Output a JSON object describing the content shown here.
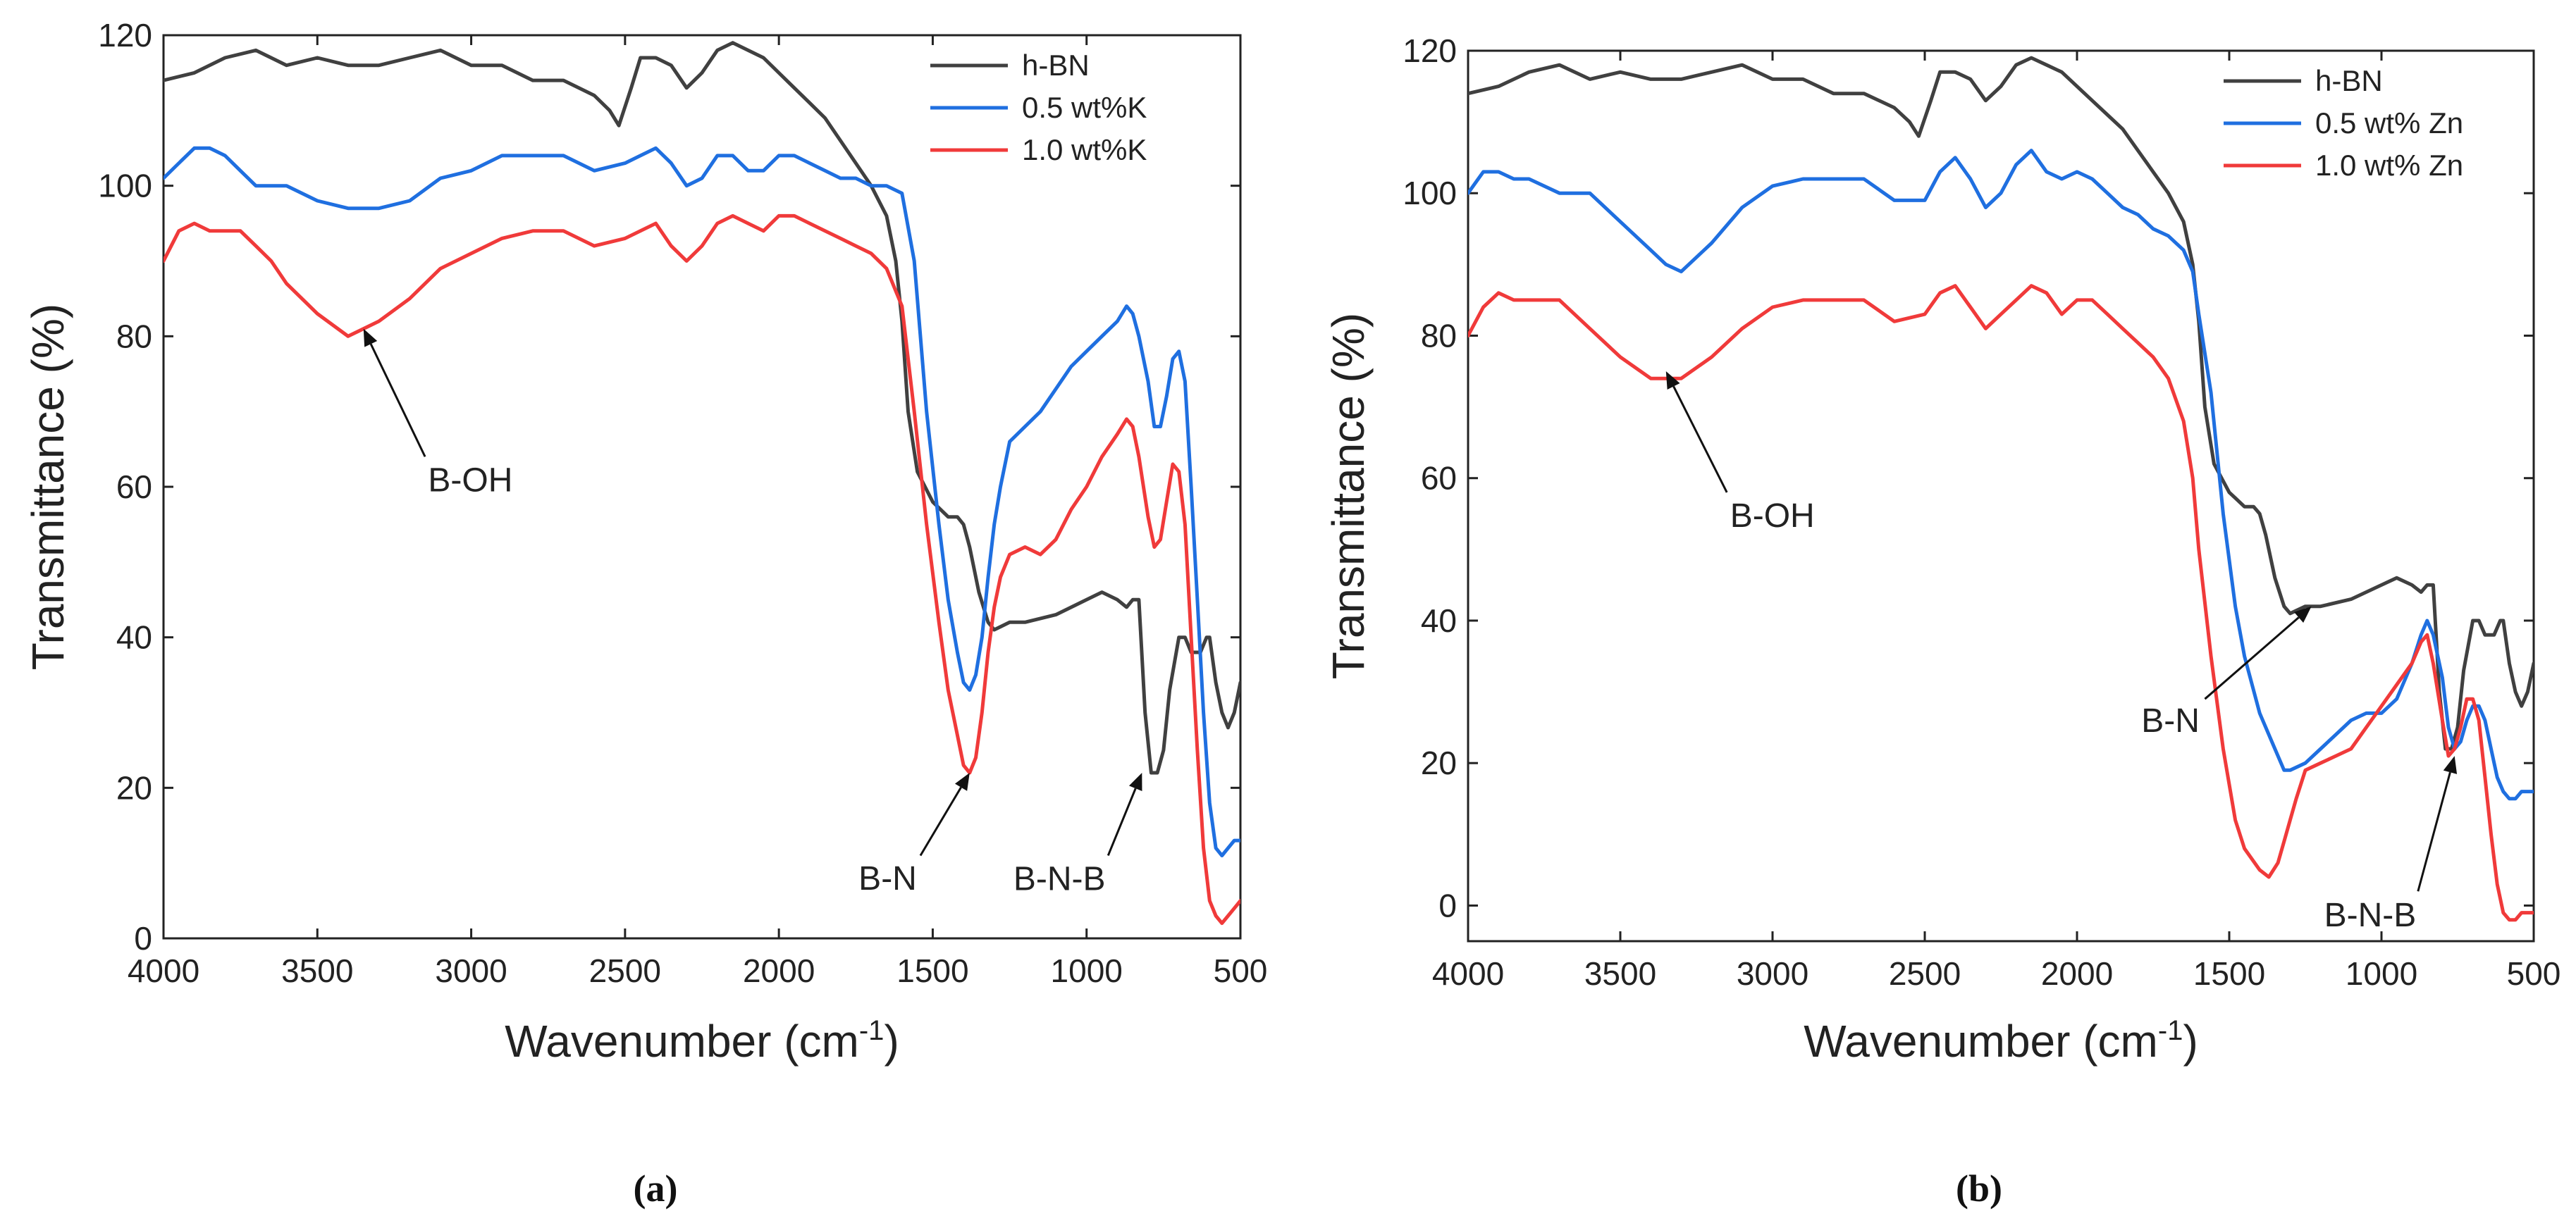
{
  "colors": {
    "hbn": "#404040",
    "low": "#1f6fe0",
    "high": "#f03a3a",
    "axis": "#222222"
  },
  "chart_data": [
    {
      "type": "line",
      "panel_label": "(a)",
      "xlabel": "Wavenumber (cm",
      "xlabel_sup": "-1",
      "xlabel_close": ")",
      "ylabel": "Transmittance (%)",
      "xlim": [
        4000,
        500
      ],
      "ylim": [
        0,
        120
      ],
      "xticks": [
        4000,
        3500,
        3000,
        2500,
        2000,
        1500,
        1000,
        500
      ],
      "yticks": [
        0,
        20,
        40,
        60,
        80,
        100,
        120
      ],
      "series": [
        {
          "name": "h-BN",
          "color_key": "hbn",
          "x": [
            4000,
            3900,
            3800,
            3700,
            3600,
            3500,
            3400,
            3300,
            3200,
            3100,
            3000,
            2900,
            2800,
            2700,
            2600,
            2550,
            2520,
            2480,
            2450,
            2400,
            2350,
            2300,
            2250,
            2200,
            2150,
            2100,
            2050,
            2000,
            1950,
            1900,
            1850,
            1800,
            1750,
            1700,
            1650,
            1620,
            1600,
            1580,
            1550,
            1500,
            1450,
            1420,
            1400,
            1380,
            1350,
            1320,
            1300,
            1250,
            1200,
            1100,
            1000,
            950,
            900,
            870,
            850,
            830,
            810,
            790,
            770,
            750,
            730,
            700,
            680,
            660,
            650,
            630,
            610,
            600,
            580,
            560,
            540,
            520,
            500
          ],
          "y": [
            114,
            115,
            117,
            118,
            116,
            117,
            116,
            116,
            117,
            118,
            116,
            116,
            114,
            114,
            112,
            110,
            108,
            113,
            117,
            117,
            116,
            113,
            115,
            118,
            119,
            118,
            117,
            115,
            113,
            111,
            109,
            106,
            103,
            100,
            96,
            90,
            82,
            70,
            62,
            58,
            56,
            56,
            55,
            52,
            46,
            42,
            41,
            42,
            42,
            43,
            45,
            46,
            45,
            44,
            45,
            45,
            30,
            22,
            22,
            25,
            33,
            40,
            40,
            38,
            38,
            38,
            40,
            40,
            34,
            30,
            28,
            30,
            34
          ]
        },
        {
          "name": "0.5 wt%K",
          "color_key": "low",
          "x": [
            4000,
            3950,
            3900,
            3850,
            3800,
            3750,
            3700,
            3650,
            3600,
            3500,
            3400,
            3300,
            3200,
            3100,
            3000,
            2900,
            2800,
            2700,
            2600,
            2500,
            2450,
            2400,
            2350,
            2300,
            2250,
            2200,
            2150,
            2100,
            2050,
            2000,
            1950,
            1900,
            1850,
            1800,
            1750,
            1700,
            1650,
            1600,
            1560,
            1520,
            1480,
            1450,
            1420,
            1400,
            1380,
            1360,
            1340,
            1320,
            1300,
            1280,
            1250,
            1200,
            1150,
            1100,
            1050,
            1000,
            950,
            900,
            870,
            850,
            830,
            800,
            780,
            760,
            740,
            720,
            700,
            680,
            660,
            640,
            620,
            600,
            580,
            560,
            540,
            520,
            500
          ],
          "y": [
            101,
            103,
            105,
            105,
            104,
            102,
            100,
            100,
            100,
            98,
            97,
            97,
            98,
            101,
            102,
            104,
            104,
            104,
            102,
            103,
            104,
            105,
            103,
            100,
            101,
            104,
            104,
            102,
            102,
            104,
            104,
            103,
            102,
            101,
            101,
            100,
            100,
            99,
            90,
            70,
            55,
            45,
            38,
            34,
            33,
            35,
            40,
            48,
            55,
            60,
            66,
            68,
            70,
            73,
            76,
            78,
            80,
            82,
            84,
            83,
            80,
            74,
            68,
            68,
            72,
            77,
            78,
            74,
            60,
            45,
            30,
            18,
            12,
            11,
            12,
            13,
            13
          ]
        },
        {
          "name": "1.0 wt%K",
          "color_key": "high",
          "x": [
            4000,
            3950,
            3900,
            3850,
            3800,
            3750,
            3700,
            3650,
            3600,
            3500,
            3400,
            3300,
            3200,
            3100,
            3000,
            2900,
            2800,
            2700,
            2600,
            2500,
            2450,
            2400,
            2350,
            2300,
            2250,
            2200,
            2150,
            2100,
            2050,
            2000,
            1950,
            1900,
            1850,
            1800,
            1750,
            1700,
            1650,
            1600,
            1560,
            1520,
            1480,
            1450,
            1420,
            1400,
            1380,
            1360,
            1340,
            1320,
            1300,
            1280,
            1250,
            1200,
            1150,
            1100,
            1050,
            1000,
            950,
            900,
            870,
            850,
            830,
            800,
            780,
            760,
            740,
            720,
            700,
            680,
            660,
            640,
            620,
            600,
            580,
            560,
            540,
            520,
            500
          ],
          "y": [
            90,
            94,
            95,
            94,
            94,
            94,
            92,
            90,
            87,
            83,
            80,
            82,
            85,
            89,
            91,
            93,
            94,
            94,
            92,
            93,
            94,
            95,
            92,
            90,
            92,
            95,
            96,
            95,
            94,
            96,
            96,
            95,
            94,
            93,
            92,
            91,
            89,
            84,
            70,
            55,
            42,
            33,
            27,
            23,
            22,
            24,
            30,
            38,
            44,
            48,
            51,
            52,
            51,
            53,
            57,
            60,
            64,
            67,
            69,
            68,
            64,
            56,
            52,
            53,
            58,
            63,
            62,
            55,
            40,
            25,
            12,
            5,
            3,
            2,
            3,
            4,
            5
          ]
        }
      ],
      "annotations": [
        {
          "text": "B-OH",
          "tip_x": 3350,
          "tip_y": 81,
          "label_x": 3150,
          "label_y": 64
        },
        {
          "text": "B-N",
          "tip_x": 1380,
          "tip_y": 22,
          "label_x": 1540,
          "label_y": 11
        },
        {
          "text": "B-N-B",
          "tip_x": 820,
          "tip_y": 22,
          "label_x": 930,
          "label_y": 11
        }
      ],
      "legend": {
        "position": "top-right"
      }
    },
    {
      "type": "line",
      "panel_label": "(b)",
      "xlabel": "Wavenumber (cm",
      "xlabel_sup": "-1",
      "xlabel_close": ")",
      "ylabel": "Transmittance (%)",
      "xlim": [
        4000,
        500
      ],
      "ylim": [
        -5,
        120
      ],
      "xticks": [
        4000,
        3500,
        3000,
        2500,
        2000,
        1500,
        1000,
        500
      ],
      "yticks": [
        0,
        20,
        40,
        60,
        80,
        100,
        120
      ],
      "series": [
        {
          "name": "h-BN",
          "color_key": "hbn",
          "x": [
            4000,
            3900,
            3800,
            3700,
            3600,
            3500,
            3400,
            3300,
            3200,
            3100,
            3000,
            2900,
            2800,
            2700,
            2600,
            2550,
            2520,
            2480,
            2450,
            2400,
            2350,
            2300,
            2250,
            2200,
            2150,
            2100,
            2050,
            2000,
            1950,
            1900,
            1850,
            1800,
            1750,
            1700,
            1650,
            1620,
            1600,
            1580,
            1550,
            1500,
            1450,
            1420,
            1400,
            1380,
            1350,
            1320,
            1300,
            1250,
            1200,
            1100,
            1000,
            950,
            900,
            870,
            850,
            830,
            810,
            790,
            770,
            750,
            730,
            700,
            680,
            660,
            650,
            630,
            610,
            600,
            580,
            560,
            540,
            520,
            500
          ],
          "y": [
            114,
            115,
            117,
            118,
            116,
            117,
            116,
            116,
            117,
            118,
            116,
            116,
            114,
            114,
            112,
            110,
            108,
            113,
            117,
            117,
            116,
            113,
            115,
            118,
            119,
            118,
            117,
            115,
            113,
            111,
            109,
            106,
            103,
            100,
            96,
            90,
            82,
            70,
            62,
            58,
            56,
            56,
            55,
            52,
            46,
            42,
            41,
            42,
            42,
            43,
            45,
            46,
            45,
            44,
            45,
            45,
            30,
            22,
            22,
            25,
            33,
            40,
            40,
            38,
            38,
            38,
            40,
            40,
            34,
            30,
            28,
            30,
            34
          ]
        },
        {
          "name": "0.5 wt% Zn",
          "color_key": "low",
          "x": [
            4000,
            3950,
            3900,
            3850,
            3800,
            3700,
            3600,
            3500,
            3400,
            3350,
            3300,
            3200,
            3100,
            3000,
            2900,
            2800,
            2700,
            2600,
            2500,
            2450,
            2400,
            2350,
            2300,
            2250,
            2200,
            2150,
            2100,
            2050,
            2000,
            1950,
            1900,
            1850,
            1800,
            1750,
            1700,
            1650,
            1620,
            1600,
            1560,
            1520,
            1480,
            1450,
            1400,
            1350,
            1320,
            1300,
            1250,
            1200,
            1150,
            1100,
            1050,
            1000,
            950,
            900,
            870,
            850,
            830,
            800,
            780,
            760,
            740,
            720,
            700,
            680,
            660,
            640,
            620,
            600,
            580,
            560,
            540,
            520,
            500
          ],
          "y": [
            100,
            103,
            103,
            102,
            102,
            100,
            100,
            96,
            92,
            90,
            89,
            93,
            98,
            101,
            102,
            102,
            102,
            99,
            99,
            103,
            105,
            102,
            98,
            100,
            104,
            106,
            103,
            102,
            103,
            102,
            100,
            98,
            97,
            95,
            94,
            92,
            89,
            83,
            72,
            55,
            42,
            35,
            27,
            22,
            19,
            19,
            20,
            22,
            24,
            26,
            27,
            27,
            29,
            34,
            38,
            40,
            38,
            32,
            25,
            22,
            23,
            26,
            28,
            28,
            26,
            22,
            18,
            16,
            15,
            15,
            16,
            16,
            16
          ]
        },
        {
          "name": "1.0 wt% Zn",
          "color_key": "high",
          "x": [
            4000,
            3950,
            3900,
            3850,
            3800,
            3700,
            3600,
            3500,
            3400,
            3350,
            3300,
            3200,
            3100,
            3000,
            2900,
            2800,
            2700,
            2600,
            2500,
            2450,
            2400,
            2350,
            2300,
            2250,
            2200,
            2150,
            2100,
            2050,
            2000,
            1950,
            1900,
            1850,
            1800,
            1750,
            1700,
            1650,
            1620,
            1600,
            1560,
            1520,
            1480,
            1450,
            1400,
            1370,
            1340,
            1320,
            1300,
            1280,
            1250,
            1200,
            1150,
            1100,
            1050,
            1000,
            950,
            900,
            870,
            850,
            830,
            800,
            780,
            760,
            740,
            720,
            700,
            680,
            660,
            640,
            620,
            600,
            580,
            560,
            540,
            520,
            500
          ],
          "y": [
            80,
            84,
            86,
            85,
            85,
            85,
            81,
            77,
            74,
            74,
            74,
            77,
            81,
            84,
            85,
            85,
            85,
            82,
            83,
            86,
            87,
            84,
            81,
            83,
            85,
            87,
            86,
            83,
            85,
            85,
            83,
            81,
            79,
            77,
            74,
            68,
            60,
            50,
            35,
            22,
            12,
            8,
            5,
            4,
            6,
            9,
            12,
            15,
            19,
            20,
            21,
            22,
            25,
            28,
            31,
            34,
            37,
            38,
            34,
            26,
            21,
            22,
            25,
            29,
            29,
            26,
            18,
            10,
            3,
            -1,
            -2,
            -2,
            -1,
            -1,
            -1
          ]
        }
      ],
      "annotations": [
        {
          "text": "B-OH",
          "tip_x": 3350,
          "tip_y": 75,
          "label_x": 3150,
          "label_y": 58
        },
        {
          "text": "B-N",
          "tip_x": 1230,
          "tip_y": 42,
          "label_x": 1580,
          "label_y": 29
        },
        {
          "text": "B-N-B",
          "tip_x": 760,
          "tip_y": 21,
          "label_x": 880,
          "label_y": 2
        }
      ],
      "legend": {
        "position": "top-right"
      }
    }
  ]
}
